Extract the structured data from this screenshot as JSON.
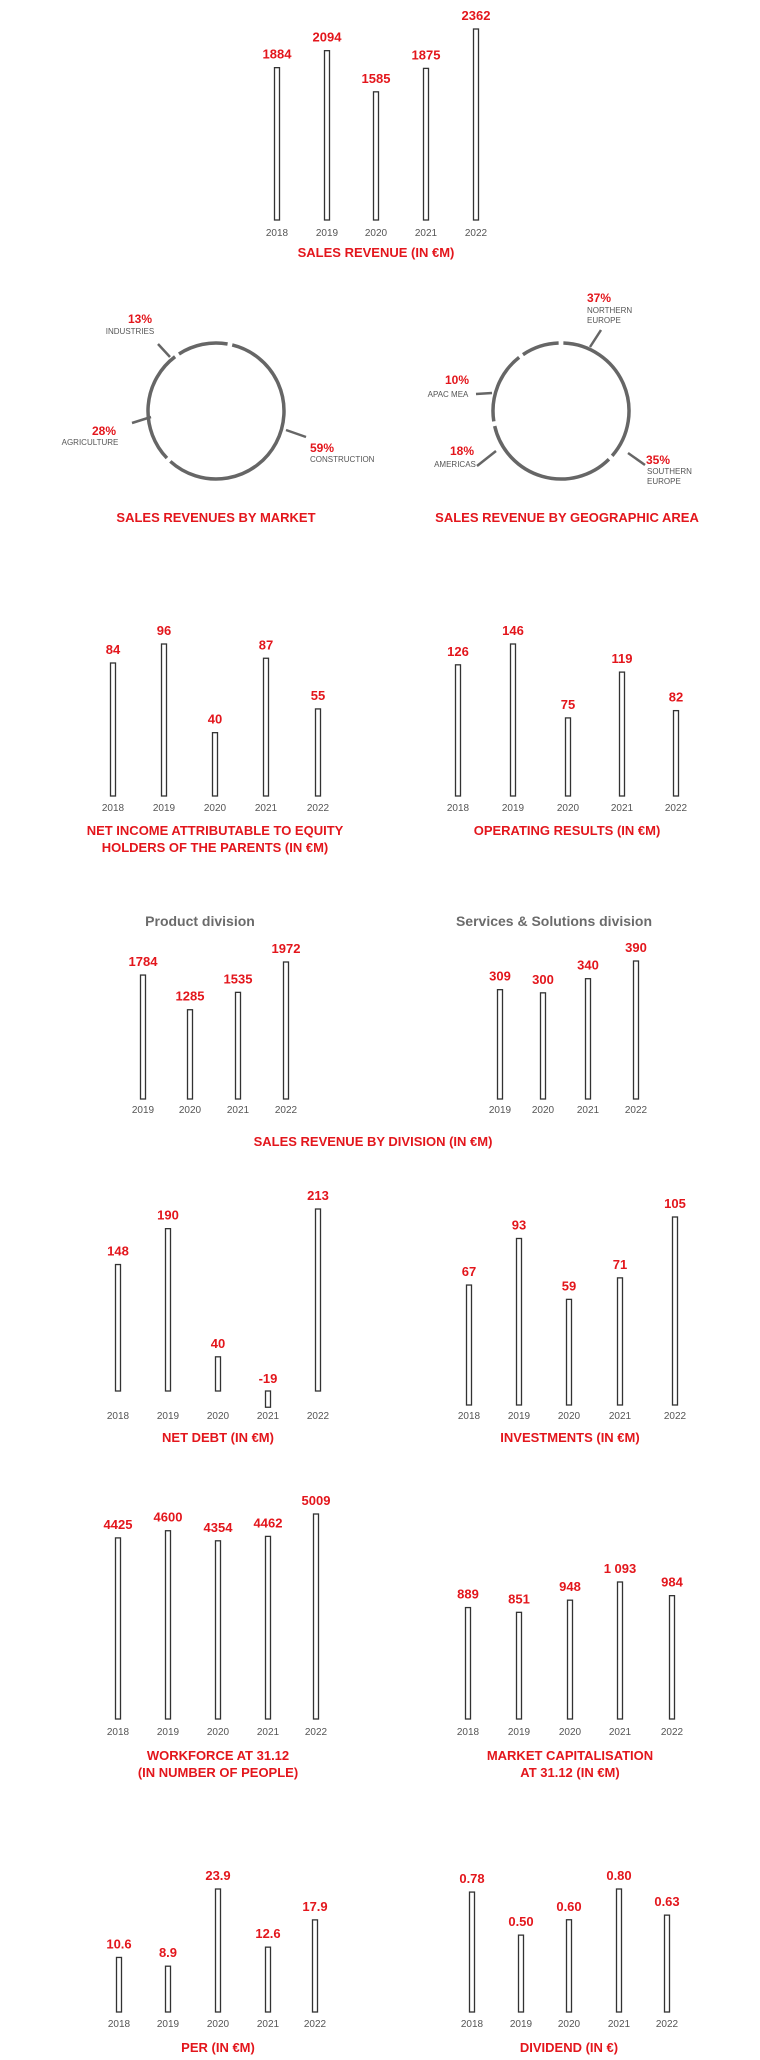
{
  "colors": {
    "accent": "#e3161c",
    "bar_fill": "#ffffff",
    "bar_stroke": "#333333",
    "ring": "#666666",
    "text": "#555555",
    "subtitle": "#6b6b6b"
  },
  "chart_data": [
    {
      "type": "bar",
      "title": "SALES REVENUE (IN €M)",
      "categories": [
        "2018",
        "2019",
        "2020",
        "2021",
        "2022"
      ],
      "series": [
        {
          "values": [
            1884,
            2094,
            1585,
            1875,
            2362
          ]
        }
      ],
      "value_labels": [
        "1884",
        "2094",
        "1585",
        "1875",
        "2362"
      ]
    },
    {
      "type": "pie",
      "title": "SALES REVENUES BY MARKET",
      "slices": [
        {
          "label": "INDUSTRIES",
          "value": 13,
          "value_label": "13%"
        },
        {
          "label": "CONSTRUCTION",
          "value": 59,
          "value_label": "59%"
        },
        {
          "label": "AGRICULTURE",
          "value": 28,
          "value_label": "28%"
        }
      ]
    },
    {
      "type": "pie",
      "title": "SALES REVENUE BY GEOGRAPHIC AREA",
      "slices": [
        {
          "label": "NORTHERN EUROPE",
          "label_lines": [
            "NORTHERN",
            "EUROPE"
          ],
          "value": 37,
          "value_label": "37%"
        },
        {
          "label": "SOUTHERN EUROPE",
          "label_lines": [
            "SOUTHERN",
            "EUROPE"
          ],
          "value": 35,
          "value_label": "35%"
        },
        {
          "label": "AMERICAS",
          "label_lines": [
            "AMERICAS"
          ],
          "value": 18,
          "value_label": "18%"
        },
        {
          "label": "APAC MEA",
          "label_lines": [
            "APAC MEA"
          ],
          "value": 10,
          "value_label": "10%"
        }
      ]
    },
    {
      "type": "bar",
      "title": "NET INCOME ATTRIBUTABLE TO EQUITY HOLDERS OF THE PARENTS (IN €M)",
      "title_lines": [
        "NET INCOME ATTRIBUTABLE TO EQUITY",
        "HOLDERS OF THE PARENTS (IN €M)"
      ],
      "categories": [
        "2018",
        "2019",
        "2020",
        "2021",
        "2022"
      ],
      "series": [
        {
          "values": [
            84,
            96,
            40,
            87,
            55
          ]
        }
      ],
      "value_labels": [
        "84",
        "96",
        "40",
        "87",
        "55"
      ]
    },
    {
      "type": "bar",
      "title": "OPERATING RESULTS (IN €M)",
      "categories": [
        "2018",
        "2019",
        "2020",
        "2021",
        "2022"
      ],
      "series": [
        {
          "values": [
            126,
            146,
            75,
            119,
            82
          ]
        }
      ],
      "value_labels": [
        "126",
        "146",
        "75",
        "119",
        "82"
      ]
    },
    {
      "type": "bar",
      "title": "SALES REVENUE BY DIVISION (IN €M)",
      "subtitle": "Product division",
      "categories": [
        "2019",
        "2020",
        "2021",
        "2022"
      ],
      "series": [
        {
          "values": [
            1784,
            1285,
            1535,
            1972
          ]
        }
      ],
      "value_labels": [
        "1784",
        "1285",
        "1535",
        "1972"
      ]
    },
    {
      "type": "bar",
      "title": "SALES REVENUE BY DIVISION (IN €M)",
      "subtitle": "Services & Solutions division",
      "categories": [
        "2019",
        "2020",
        "2021",
        "2022"
      ],
      "series": [
        {
          "values": [
            309,
            300,
            340,
            390
          ]
        }
      ],
      "value_labels": [
        "309",
        "300",
        "340",
        "390"
      ]
    },
    {
      "type": "bar",
      "title": "NET DEBT (IN €M)",
      "categories": [
        "2018",
        "2019",
        "2020",
        "2021",
        "2022"
      ],
      "series": [
        {
          "values": [
            148,
            190,
            40,
            -19,
            213
          ]
        }
      ],
      "value_labels": [
        "148",
        "190",
        "40",
        "-19",
        "213"
      ]
    },
    {
      "type": "bar",
      "title": "INVESTMENTS (IN €M)",
      "categories": [
        "2018",
        "2019",
        "2020",
        "2021",
        "2022"
      ],
      "series": [
        {
          "values": [
            67,
            93,
            59,
            71,
            105
          ]
        }
      ],
      "value_labels": [
        "67",
        "93",
        "59",
        "71",
        "105"
      ]
    },
    {
      "type": "bar",
      "title": "WORKFORCE AT 31.12 (IN NUMBER OF PEOPLE)",
      "title_lines": [
        "WORKFORCE AT 31.12",
        "(IN NUMBER OF PEOPLE)"
      ],
      "categories": [
        "2018",
        "2019",
        "2020",
        "2021",
        "2022"
      ],
      "series": [
        {
          "values": [
            4425,
            4600,
            4354,
            4462,
            5009
          ]
        }
      ],
      "value_labels": [
        "4425",
        "4600",
        "4354",
        "4462",
        "5009"
      ]
    },
    {
      "type": "bar",
      "title": "MARKET CAPITALISATION AT 31.12 (IN €M)",
      "title_lines": [
        "MARKET CAPITALISATION",
        "AT 31.12 (IN €M)"
      ],
      "categories": [
        "2018",
        "2019",
        "2020",
        "2021",
        "2022"
      ],
      "series": [
        {
          "values": [
            889,
            851,
            948,
            1093,
            984
          ]
        }
      ],
      "value_labels": [
        "889",
        "851",
        "948",
        "1 093",
        "984"
      ]
    },
    {
      "type": "bar",
      "title": "PER (IN €M)",
      "categories": [
        "2018",
        "2019",
        "2020",
        "2021",
        "2022"
      ],
      "series": [
        {
          "values": [
            10.6,
            8.9,
            23.9,
            12.6,
            17.9
          ]
        }
      ],
      "value_labels": [
        "10.6",
        "8.9",
        "23.9",
        "12.6",
        "17.9"
      ]
    },
    {
      "type": "bar",
      "title": "DIVIDEND (IN €)",
      "categories": [
        "2018",
        "2019",
        "2020",
        "2021",
        "2022"
      ],
      "series": [
        {
          "values": [
            0.78,
            0.5,
            0.6,
            0.8,
            0.63
          ]
        }
      ],
      "value_labels": [
        "0.78",
        "0.50",
        "0.60",
        "0.80",
        "0.63"
      ]
    }
  ]
}
